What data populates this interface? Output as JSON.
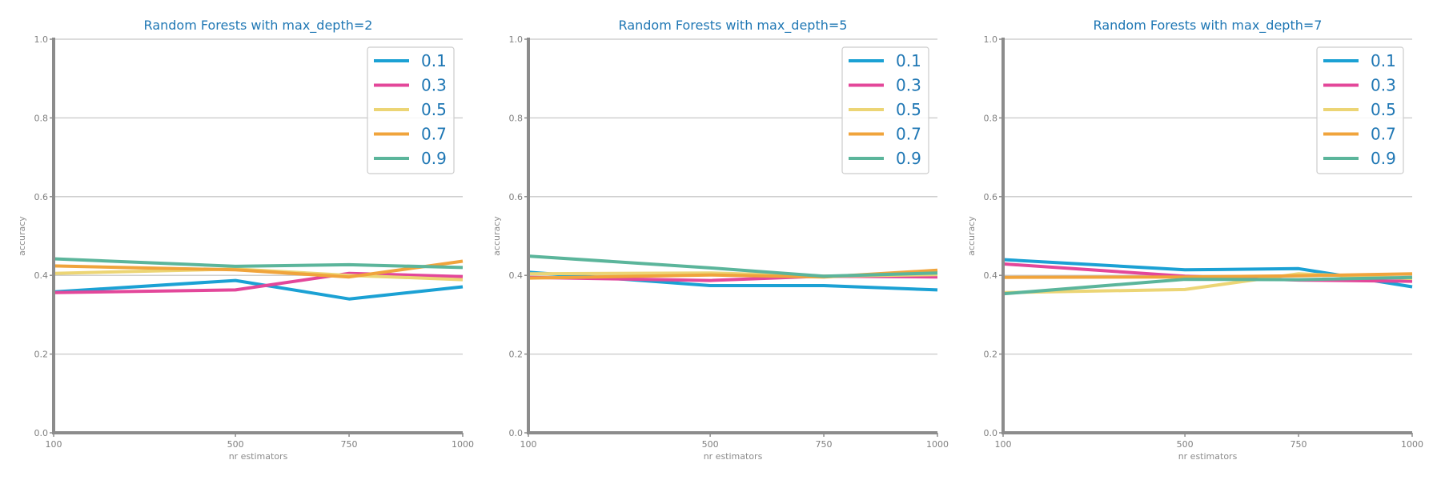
{
  "colors": {
    "0.1": "#1ba1d4",
    "0.3": "#e3479a",
    "0.5": "#ecd575",
    "0.7": "#f0a43c",
    "0.9": "#5bb59b",
    "axis": "#8c8c8c",
    "grid": "#c8c8c8",
    "title": "#1f77b4"
  },
  "chart_data": [
    {
      "type": "line",
      "title": "Random Forests with max_depth=2",
      "xlabel": "nr estimators",
      "ylabel": "accuracy",
      "x": [
        100,
        500,
        750,
        1000
      ],
      "xlim": [
        100,
        1000
      ],
      "ylim": [
        0.0,
        1.0
      ],
      "yticks": [
        "0.0",
        "0.2",
        "0.4",
        "0.6",
        "0.8",
        "1.0"
      ],
      "xticks": [
        "100",
        "500",
        "750",
        "1000"
      ],
      "grid": "horizontal",
      "legend_position": "top-right",
      "series": [
        {
          "name": "0.1",
          "values": [
            0.358,
            0.387,
            0.34,
            0.371
          ]
        },
        {
          "name": "0.3",
          "values": [
            0.356,
            0.363,
            0.405,
            0.397
          ]
        },
        {
          "name": "0.5",
          "values": [
            0.405,
            0.416,
            0.4,
            0.389
          ]
        },
        {
          "name": "0.7",
          "values": [
            0.424,
            0.414,
            0.396,
            0.436
          ]
        },
        {
          "name": "0.9",
          "values": [
            0.442,
            0.423,
            0.427,
            0.42
          ]
        }
      ]
    },
    {
      "type": "line",
      "title": "Random Forests with max_depth=5",
      "xlabel": "nr estimators",
      "ylabel": "accuracy",
      "x": [
        100,
        500,
        750,
        1000
      ],
      "xlim": [
        100,
        1000
      ],
      "ylim": [
        0.0,
        1.0
      ],
      "yticks": [
        "0.0",
        "0.2",
        "0.4",
        "0.6",
        "0.8",
        "1.0"
      ],
      "xticks": [
        "100",
        "500",
        "750",
        "1000"
      ],
      "grid": "horizontal",
      "legend_position": "top-right",
      "series": [
        {
          "name": "0.1",
          "values": [
            0.408,
            0.374,
            0.374,
            0.363
          ]
        },
        {
          "name": "0.3",
          "values": [
            0.395,
            0.387,
            0.398,
            0.396
          ]
        },
        {
          "name": "0.5",
          "values": [
            0.404,
            0.406,
            0.398,
            0.402
          ]
        },
        {
          "name": "0.7",
          "values": [
            0.393,
            0.401,
            0.396,
            0.413
          ]
        },
        {
          "name": "0.9",
          "values": [
            0.449,
            0.419,
            0.398,
            0.406
          ]
        }
      ]
    },
    {
      "type": "line",
      "title": "Random Forests with max_depth=7",
      "xlabel": "nr estimators",
      "ylabel": "accuracy",
      "x": [
        100,
        500,
        750,
        1000
      ],
      "xlim": [
        100,
        1000
      ],
      "ylim": [
        0.0,
        1.0
      ],
      "yticks": [
        "0.0",
        "0.2",
        "0.4",
        "0.6",
        "0.8",
        "1.0"
      ],
      "xticks": [
        "100",
        "500",
        "750",
        "1000"
      ],
      "grid": "horizontal",
      "legend_position": "top-right",
      "series": [
        {
          "name": "0.1",
          "values": [
            0.44,
            0.414,
            0.417,
            0.371
          ]
        },
        {
          "name": "0.3",
          "values": [
            0.429,
            0.398,
            0.388,
            0.385
          ]
        },
        {
          "name": "0.5",
          "values": [
            0.356,
            0.364,
            0.404,
            0.392
          ]
        },
        {
          "name": "0.7",
          "values": [
            0.395,
            0.396,
            0.399,
            0.404
          ]
        },
        {
          "name": "0.9",
          "values": [
            0.353,
            0.39,
            0.389,
            0.395
          ]
        }
      ]
    }
  ]
}
